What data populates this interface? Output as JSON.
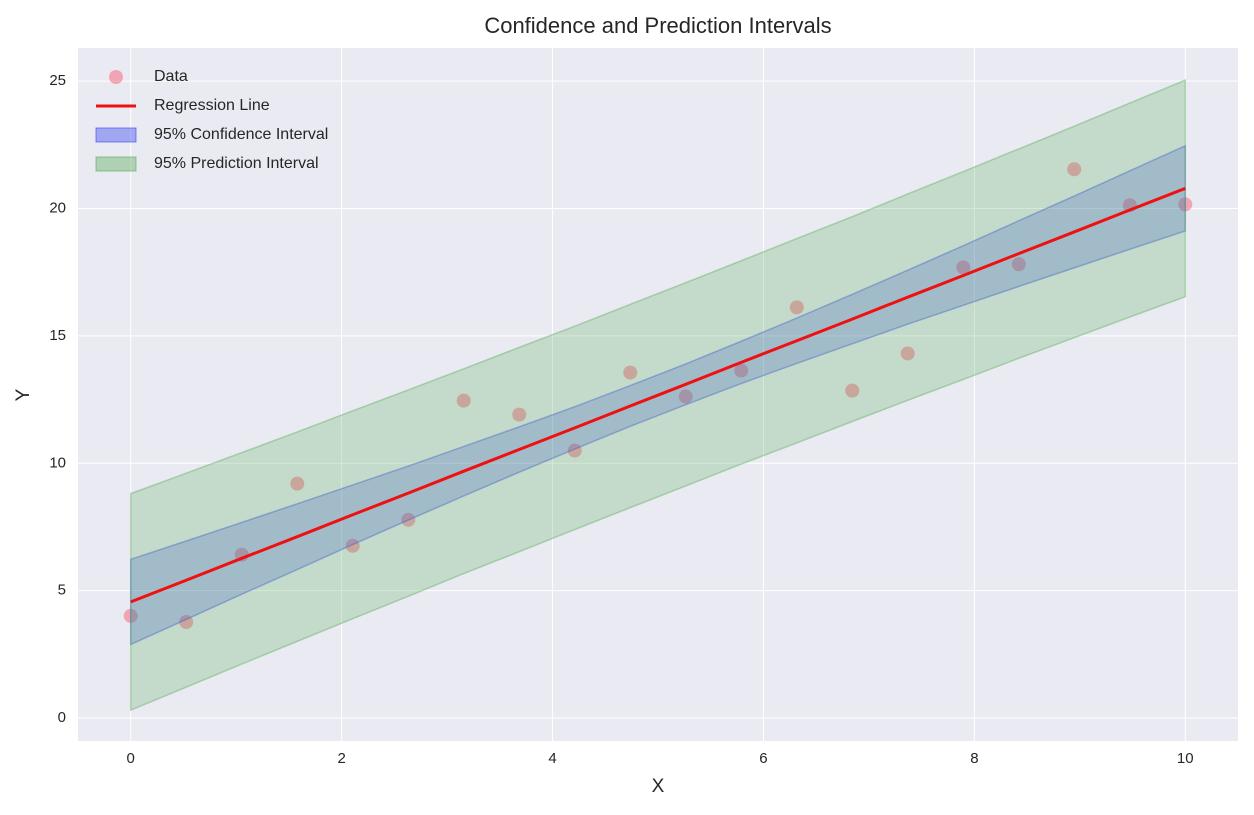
{
  "chart_data": {
    "type": "scatter",
    "title": "Confidence and Prediction Intervals",
    "x_label": "X",
    "y_label": "Y",
    "xlim": [
      -0.5,
      10.5
    ],
    "ylim": [
      -0.9,
      26.3
    ],
    "xticks": [
      0,
      2,
      4,
      6,
      8,
      10
    ],
    "yticks": [
      0,
      5,
      10,
      15,
      20,
      25
    ],
    "grid": true,
    "legend": "upper left",
    "x": [
      0,
      0.526,
      1.053,
      1.579,
      2.105,
      2.632,
      3.158,
      3.684,
      4.211,
      4.737,
      5.263,
      5.789,
      6.316,
      6.842,
      7.368,
      7.895,
      8.421,
      8.947,
      9.474,
      10
    ],
    "series": [
      {
        "name": "Data",
        "type": "scatter",
        "color": "#f4768a",
        "values": [
          4.01,
          3.77,
          6.41,
          9.2,
          6.76,
          7.78,
          12.46,
          11.91,
          10.5,
          13.56,
          12.62,
          13.64,
          16.12,
          12.85,
          14.31,
          17.69,
          17.81,
          21.54,
          20.13,
          20.16
        ]
      },
      {
        "name": "Regression Line",
        "type": "line",
        "color": "#ee1111",
        "values": [
          4.56,
          5.41,
          6.27,
          7.12,
          7.98,
          8.83,
          9.69,
          10.54,
          11.39,
          12.25,
          13.1,
          13.96,
          14.81,
          15.66,
          16.52,
          17.37,
          18.23,
          19.08,
          19.94,
          20.79
        ]
      },
      {
        "name": "95% Confidence Interval",
        "type": "band",
        "color": "#3344ee",
        "upper": [
          6.23,
          6.95,
          7.68,
          8.41,
          9.15,
          9.89,
          10.66,
          11.43,
          12.22,
          13.05,
          13.9,
          14.79,
          15.7,
          16.63,
          17.58,
          18.54,
          19.52,
          20.49,
          21.48,
          22.46
        ],
        "lower": [
          2.89,
          3.87,
          4.86,
          5.83,
          6.81,
          7.77,
          8.72,
          9.65,
          10.56,
          11.45,
          12.3,
          13.13,
          13.92,
          14.69,
          15.46,
          16.2,
          16.94,
          17.67,
          18.4,
          19.12
        ]
      },
      {
        "name": "95% Prediction Interval",
        "type": "band",
        "color": "#55aa55",
        "upper": [
          8.81,
          9.61,
          10.42,
          11.23,
          12.06,
          12.88,
          13.71,
          14.55,
          15.38,
          16.24,
          17.09,
          17.95,
          18.82,
          19.68,
          20.57,
          21.45,
          22.34,
          23.23,
          24.14,
          25.04
        ],
        "lower": [
          0.31,
          1.21,
          2.12,
          3.01,
          3.9,
          4.78,
          5.67,
          6.53,
          7.4,
          8.26,
          9.11,
          9.97,
          10.8,
          11.64,
          12.47,
          13.29,
          14.12,
          14.93,
          15.74,
          16.54
        ]
      }
    ]
  }
}
